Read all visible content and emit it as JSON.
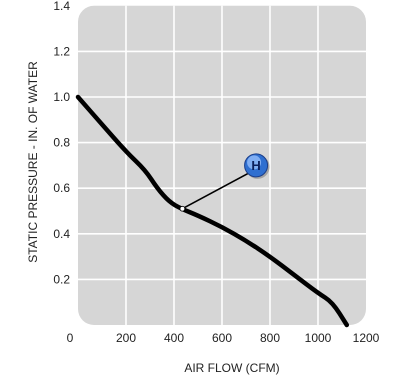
{
  "chart_data": {
    "type": "line",
    "title": "",
    "xlabel": "AIR FLOW (CFM)",
    "ylabel": "STATIC PRESSURE - IN. OF WATER",
    "xlim": [
      0,
      1200
    ],
    "ylim": [
      0,
      1.4
    ],
    "x_ticks": [
      0,
      200,
      400,
      600,
      800,
      1000,
      1200
    ],
    "y_ticks": [
      0.2,
      0.4,
      0.6,
      0.8,
      1.0,
      1.2,
      1.4
    ],
    "x_tick_labels": [
      "0",
      "200",
      "400",
      "600",
      "800",
      "1000",
      "1200"
    ],
    "y_tick_labels": [
      "0.2",
      "0.4",
      "0.6",
      "0.8",
      "1.0",
      "1.2",
      "1.4"
    ],
    "grid": true,
    "series": [
      {
        "values": [
          {
            "x": 0,
            "y": 1.0
          },
          {
            "x": 100,
            "y": 0.88
          },
          {
            "x": 200,
            "y": 0.76
          },
          {
            "x": 280,
            "y": 0.68
          },
          {
            "x": 330,
            "y": 0.6
          },
          {
            "x": 380,
            "y": 0.54
          },
          {
            "x": 430,
            "y": 0.51
          },
          {
            "x": 500,
            "y": 0.48
          },
          {
            "x": 600,
            "y": 0.43
          },
          {
            "x": 700,
            "y": 0.37
          },
          {
            "x": 800,
            "y": 0.3
          },
          {
            "x": 900,
            "y": 0.22
          },
          {
            "x": 1000,
            "y": 0.14
          },
          {
            "x": 1060,
            "y": 0.1
          },
          {
            "x": 1120,
            "y": 0.0
          }
        ]
      }
    ],
    "annotations": [
      {
        "label": "H",
        "x": 435,
        "y": 0.51
      }
    ],
    "colors": {
      "plot_bg": "#d6d6d6",
      "grid": "#ffffff",
      "line": "#000000",
      "callout_fill": "#2f6fd0",
      "callout_text": "#0b1f5c"
    }
  }
}
